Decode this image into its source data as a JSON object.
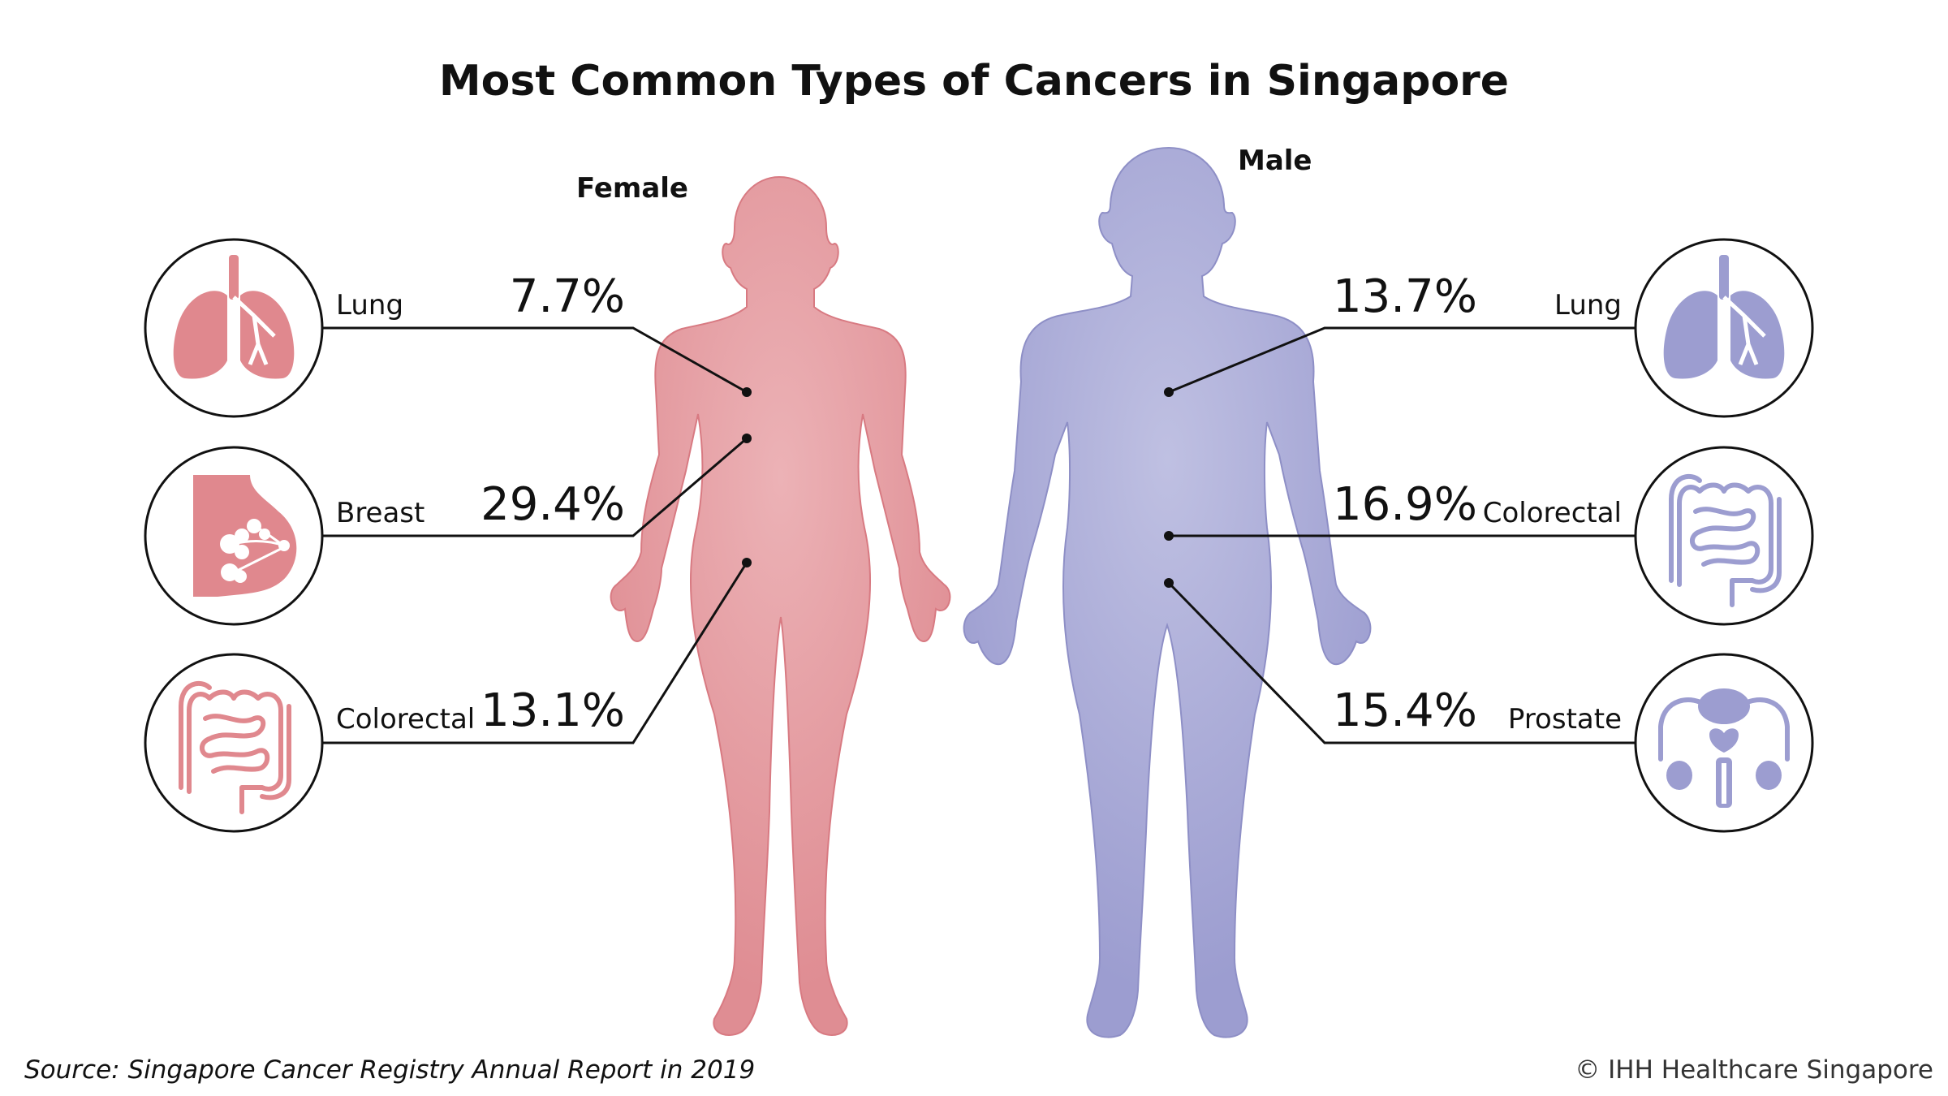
{
  "title": "Most Common Types of Cancers in Singapore",
  "female": {
    "label": "Female",
    "color": "#e0888e",
    "items": [
      {
        "name": "Lung",
        "percent": "7.7%",
        "icon": "lung-icon"
      },
      {
        "name": "Breast",
        "percent": "29.4%",
        "icon": "breast-icon"
      },
      {
        "name": "Colorectal",
        "percent": "13.1%",
        "icon": "colorectal-icon"
      }
    ]
  },
  "male": {
    "label": "Male",
    "color": "#9c9dd0",
    "items": [
      {
        "name": "Lung",
        "percent": "13.7%",
        "icon": "lung-icon"
      },
      {
        "name": "Colorectal",
        "percent": "16.9%",
        "icon": "colorectal-icon"
      },
      {
        "name": "Prostate",
        "percent": "15.4%",
        "icon": "prostate-icon"
      }
    ]
  },
  "footer": {
    "source": "Source: Singapore Cancer Registry Annual Report in 2019",
    "copyright": "© IHH Healthcare Singapore"
  }
}
